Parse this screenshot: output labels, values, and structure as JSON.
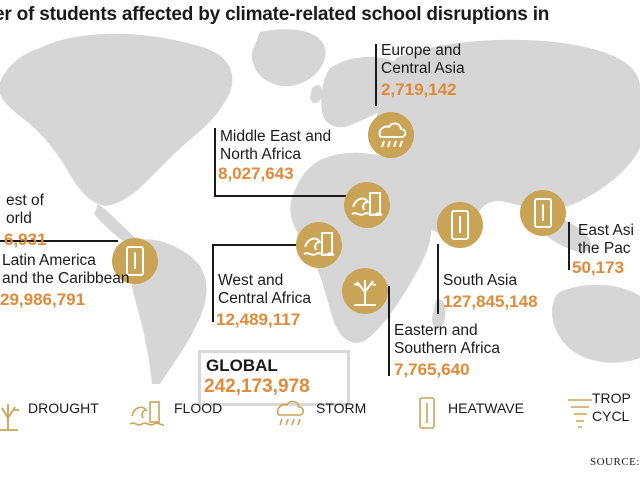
{
  "title": "er of students affected by climate-related school disruptions in",
  "regions": {
    "europe": {
      "name_line1": "Europe and",
      "name_line2": "Central Asia",
      "value": "2,719,142"
    },
    "mena": {
      "name_line1": "Middle East and",
      "name_line2": "North Africa",
      "value": "8,027,643"
    },
    "rest": {
      "name_line1": "est of",
      "name_line2": "orld",
      "value": "6,931"
    },
    "latam": {
      "name_line1": "Latin America",
      "name_line2": "and the Caribbean",
      "value": "29,986,791"
    },
    "wca": {
      "name_line1": "West and",
      "name_line2": "Central Africa",
      "value": "12,489,117"
    },
    "southasia": {
      "name_line1": "South Asia",
      "value": "127,845,148"
    },
    "esa": {
      "name_line1": "Eastern and",
      "name_line2": "Southern Africa",
      "value": "7,765,640"
    },
    "eap": {
      "name_line1": "East Asi",
      "name_line2": "the Pac",
      "value": "50,173"
    }
  },
  "global": {
    "label": "GLOBAL",
    "value": "242,173,978"
  },
  "legend": {
    "drought": "DROUGHT",
    "flood": "FLOOD",
    "storm": "STORM",
    "heatwave": "HEATWAVE",
    "cyclone_line1": "TROP",
    "cyclone_line2": "CYCL"
  },
  "source": "SOURCE: U",
  "colors": {
    "accent": "#e08a3a",
    "badge": "#c9a457",
    "map": "#d6d6d6",
    "text": "#1a1a1a"
  }
}
